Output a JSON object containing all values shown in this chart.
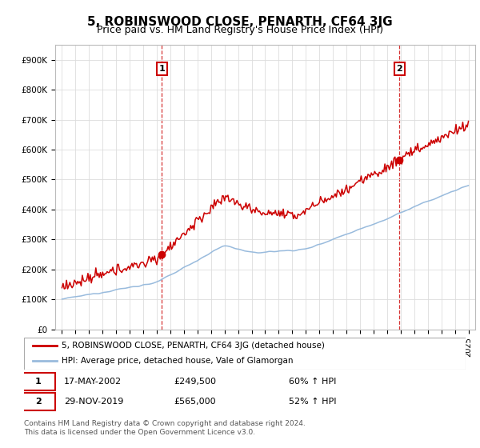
{
  "title": "5, ROBINSWOOD CLOSE, PENARTH, CF64 3JG",
  "subtitle": "Price paid vs. HM Land Registry's House Price Index (HPI)",
  "title_fontsize": 11,
  "subtitle_fontsize": 9,
  "background_color": "#ffffff",
  "grid_color": "#dddddd",
  "plot_bg_color": "#ffffff",
  "red_color": "#cc0000",
  "blue_color": "#99bbdd",
  "ylim": [
    0,
    950000
  ],
  "yticks": [
    0,
    100000,
    200000,
    300000,
    400000,
    500000,
    600000,
    700000,
    800000,
    900000
  ],
  "ytick_labels": [
    "£0",
    "£100K",
    "£200K",
    "£300K",
    "£400K",
    "£500K",
    "£600K",
    "£700K",
    "£800K",
    "£900K"
  ],
  "sale1_year": 2002.38,
  "sale1_price": 249500,
  "sale2_year": 2019.91,
  "sale2_price": 565000,
  "legend_line1": "5, ROBINSWOOD CLOSE, PENARTH, CF64 3JG (detached house)",
  "legend_line2": "HPI: Average price, detached house, Vale of Glamorgan",
  "annotation1_date": "17-MAY-2002",
  "annotation1_price": "£249,500",
  "annotation1_hpi": "60% ↑ HPI",
  "annotation2_date": "29-NOV-2019",
  "annotation2_price": "£565,000",
  "annotation2_hpi": "52% ↑ HPI",
  "footer": "Contains HM Land Registry data © Crown copyright and database right 2024.\nThis data is licensed under the Open Government Licence v3.0.",
  "xtick_years": [
    1995,
    1996,
    1997,
    1998,
    1999,
    2000,
    2001,
    2002,
    2003,
    2004,
    2005,
    2006,
    2007,
    2008,
    2009,
    2010,
    2011,
    2012,
    2013,
    2014,
    2015,
    2016,
    2017,
    2018,
    2019,
    2020,
    2021,
    2022,
    2023,
    2024,
    2025
  ]
}
